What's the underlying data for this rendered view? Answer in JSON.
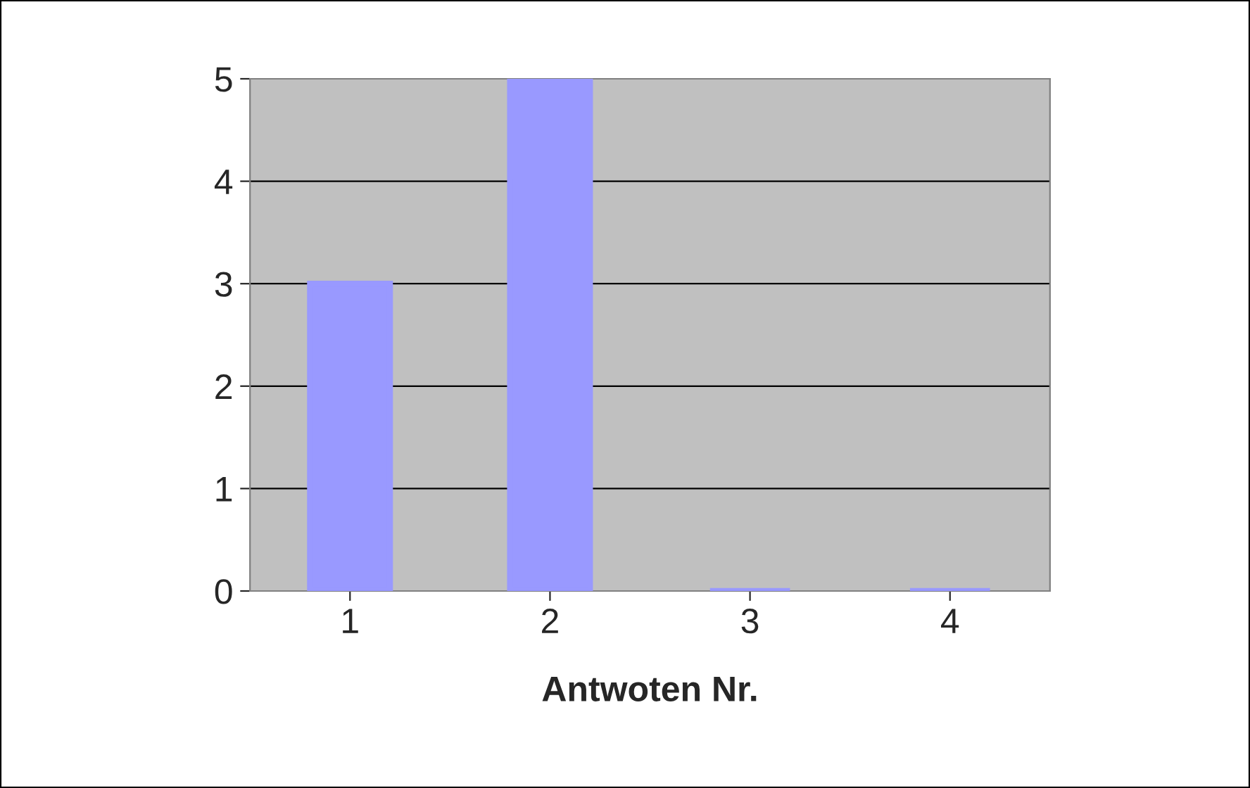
{
  "chart_data": {
    "type": "bar",
    "xlabel": "Antwoten Nr.",
    "categories": [
      "1",
      "2",
      "3",
      "4"
    ],
    "values": [
      3,
      5,
      0,
      0
    ],
    "color": "#9999ff",
    "ylim": [
      0,
      5
    ],
    "yticks": [
      0,
      1,
      2,
      3,
      4,
      5
    ],
    "grid": "y"
  }
}
